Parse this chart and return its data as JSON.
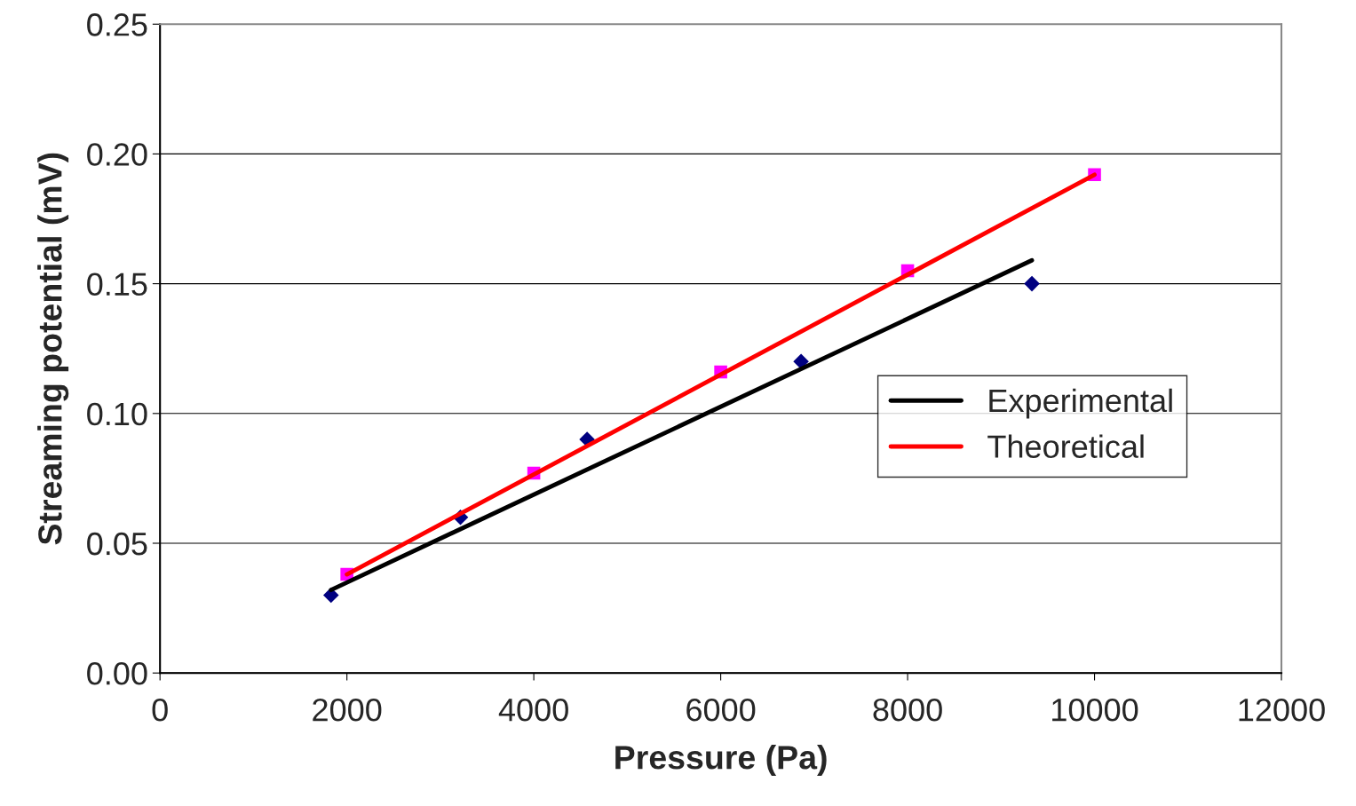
{
  "chart_data": {
    "type": "scatter",
    "xlabel": "Pressure (Pa)",
    "ylabel": "Streaming potential (mV)",
    "xlim": [
      0,
      12000
    ],
    "xticks": [
      0,
      2000,
      4000,
      6000,
      8000,
      10000,
      12000
    ],
    "ylim": [
      0,
      0.25
    ],
    "yticks": [
      {
        "value": 0,
        "label": "0.00"
      },
      {
        "value": 0.05,
        "label": "0.05"
      },
      {
        "value": 0.1,
        "label": "0.10"
      },
      {
        "value": 0.15,
        "label": "0.15"
      },
      {
        "value": 0.2,
        "label": "0.20"
      },
      {
        "value": 0.25,
        "label": "0.25"
      }
    ],
    "grid": "y",
    "legend": "right",
    "series": [
      {
        "marker": "diamond",
        "color": "#000080",
        "x": [
          1830,
          3215,
          4570,
          6860,
          9330
        ],
        "values": [
          0.03,
          0.06,
          0.09,
          0.12,
          0.15
        ]
      },
      {
        "marker": "square",
        "color": "#ff00ff",
        "x": [
          2000,
          4000,
          6000,
          8000,
          10000
        ],
        "values": [
          0.038,
          0.077,
          0.116,
          0.155,
          0.192
        ]
      },
      {
        "type": "line",
        "name": "Experimental",
        "color": "#000000",
        "marker": "none",
        "x": [
          1830,
          9330
        ],
        "values": [
          0.032,
          0.159
        ]
      },
      {
        "type": "line",
        "name": "Theoretical",
        "color": "#ff0000",
        "marker": "none",
        "x": [
          2000,
          10000
        ],
        "values": [
          0.038,
          0.192
        ]
      }
    ]
  }
}
